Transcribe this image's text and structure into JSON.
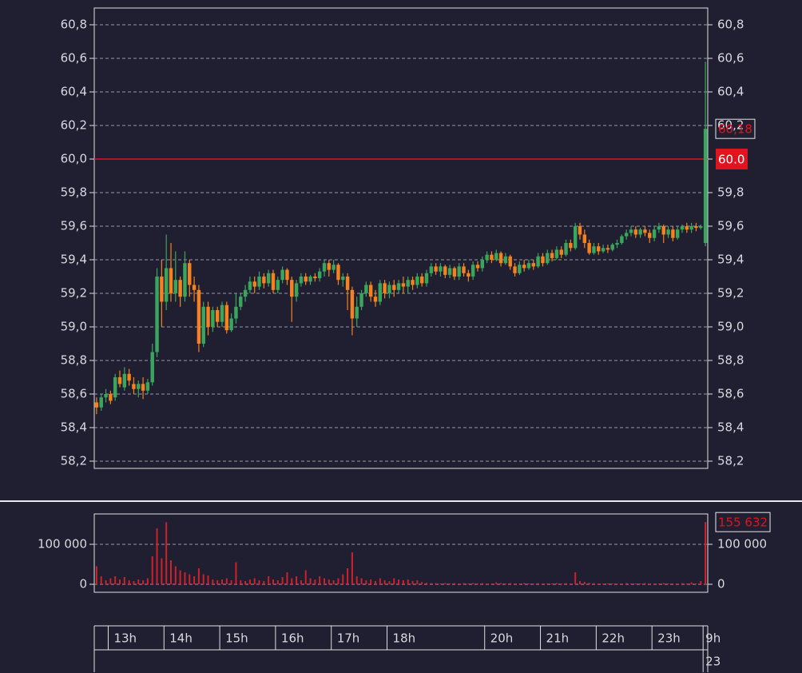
{
  "chart_data": {
    "type": "candlestick",
    "up_color": "#3aa55d",
    "down_color": "#f5821f",
    "volume_color": "#d0202a",
    "reference_color": "#e0141e",
    "grid": true,
    "categories": [
      null,
      null,
      null,
      "13h",
      null,
      null,
      null,
      null,
      null,
      null,
      null,
      null,
      null,
      null,
      null,
      "14h",
      null,
      null,
      null,
      null,
      null,
      null,
      null,
      null,
      null,
      null,
      null,
      "15h",
      null,
      null,
      null,
      null,
      null,
      null,
      null,
      null,
      null,
      null,
      null,
      "16h",
      null,
      null,
      null,
      null,
      null,
      null,
      null,
      null,
      null,
      null,
      null,
      "17h",
      null,
      null,
      null,
      null,
      null,
      null,
      null,
      null,
      null,
      null,
      null,
      "18h",
      null,
      null,
      null,
      null,
      null,
      null,
      null,
      null,
      null,
      null,
      null,
      null,
      null,
      null,
      null,
      null,
      null,
      null,
      null,
      null,
      "20h",
      null,
      null,
      null,
      null,
      null,
      null,
      null,
      null,
      null,
      null,
      null,
      "21h",
      null,
      null,
      null,
      null,
      null,
      null,
      null,
      null,
      null,
      null,
      null,
      "22h",
      null,
      null,
      null,
      null,
      null,
      null,
      null,
      null,
      null,
      null,
      null,
      "23h",
      null,
      null,
      null,
      null,
      null,
      null,
      null,
      null,
      null,
      null,
      "9h"
    ],
    "date_label": "23",
    "open": [
      58.55,
      58.52,
      58.58,
      58.6,
      58.58,
      58.7,
      58.64,
      58.72,
      58.66,
      58.63,
      58.66,
      58.62,
      58.67,
      58.85,
      59.3,
      59.15,
      59.35,
      59.2,
      59.28,
      59.18,
      59.38,
      59.25,
      59.22,
      58.9,
      59.12,
      59.0,
      59.1,
      59.03,
      59.13,
      58.98,
      59.05,
      59.12,
      59.18,
      59.22,
      59.27,
      59.24,
      59.3,
      59.26,
      59.32,
      59.22,
      59.28,
      59.34,
      59.28,
      59.18,
      59.26,
      59.3,
      59.27,
      59.3,
      59.29,
      59.33,
      59.38,
      59.34,
      59.37,
      59.28,
      59.3,
      59.22,
      59.05,
      59.12,
      59.2,
      59.25,
      59.18,
      59.15,
      59.26,
      59.2,
      59.25,
      59.22,
      59.26,
      59.24,
      59.28,
      59.25,
      59.3,
      59.26,
      59.32,
      59.36,
      59.33,
      59.36,
      59.31,
      59.35,
      59.3,
      59.36,
      59.32,
      59.3,
      59.37,
      59.35,
      59.4,
      59.43,
      59.4,
      59.44,
      59.38,
      59.42,
      59.36,
      59.32,
      59.37,
      59.35,
      59.38,
      59.36,
      59.42,
      59.38,
      59.44,
      59.41,
      59.46,
      59.43,
      59.5,
      59.47,
      59.6,
      59.55,
      59.5,
      59.44,
      59.48,
      59.45,
      59.47,
      59.46,
      59.49,
      59.5,
      59.54,
      59.56,
      59.58,
      59.55,
      59.58,
      59.56,
      59.53,
      59.58,
      59.6,
      59.55,
      59.58,
      59.53,
      59.58,
      59.6,
      59.58,
      59.6,
      59.59,
      59.5
    ],
    "high": [
      58.58,
      58.6,
      58.63,
      58.62,
      58.72,
      58.74,
      58.76,
      58.75,
      58.7,
      58.68,
      58.7,
      58.69,
      58.9,
      59.35,
      59.4,
      59.55,
      59.5,
      59.45,
      59.3,
      59.45,
      59.4,
      59.3,
      59.25,
      59.15,
      59.15,
      59.12,
      59.12,
      59.15,
      59.15,
      59.08,
      59.2,
      59.2,
      59.25,
      59.3,
      59.3,
      59.33,
      59.32,
      59.34,
      59.34,
      59.3,
      59.36,
      59.35,
      59.3,
      59.28,
      59.32,
      59.32,
      59.31,
      59.32,
      59.35,
      59.4,
      59.4,
      59.4,
      59.38,
      59.32,
      59.32,
      59.24,
      59.18,
      59.22,
      59.27,
      59.27,
      59.22,
      59.28,
      59.28,
      59.27,
      59.28,
      59.28,
      59.3,
      59.3,
      59.3,
      59.32,
      59.32,
      59.34,
      59.38,
      59.38,
      59.38,
      59.37,
      59.37,
      59.36,
      59.38,
      59.38,
      59.34,
      59.39,
      59.39,
      59.42,
      59.45,
      59.45,
      59.46,
      59.45,
      59.44,
      59.43,
      59.38,
      59.39,
      59.4,
      59.4,
      59.4,
      59.44,
      59.44,
      59.46,
      59.46,
      59.48,
      59.48,
      59.52,
      59.52,
      59.62,
      59.62,
      59.58,
      59.52,
      59.5,
      59.5,
      59.49,
      59.49,
      59.5,
      59.52,
      59.55,
      59.58,
      59.6,
      59.6,
      59.59,
      59.6,
      59.58,
      59.6,
      59.62,
      59.61,
      59.6,
      59.6,
      59.6,
      59.61,
      59.62,
      59.62,
      59.62,
      59.61,
      60.58
    ],
    "low": [
      58.48,
      58.5,
      58.55,
      58.54,
      58.56,
      58.64,
      58.62,
      58.65,
      58.6,
      58.58,
      58.57,
      58.6,
      58.65,
      58.82,
      59.0,
      59.1,
      59.15,
      59.15,
      59.12,
      59.15,
      59.18,
      59.15,
      58.85,
      58.88,
      58.95,
      58.97,
      59.0,
      59.0,
      58.96,
      58.97,
      59.02,
      59.1,
      59.15,
      59.2,
      59.2,
      59.22,
      59.23,
      59.24,
      59.2,
      59.2,
      59.26,
      59.25,
      59.03,
      59.15,
      59.24,
      59.25,
      59.25,
      59.27,
      59.27,
      59.3,
      59.3,
      59.32,
      59.25,
      59.24,
      59.1,
      58.95,
      59.0,
      59.1,
      59.18,
      59.15,
      59.12,
      59.13,
      59.17,
      59.17,
      59.18,
      59.2,
      59.2,
      59.2,
      59.22,
      59.23,
      59.24,
      59.24,
      59.3,
      59.31,
      59.3,
      59.29,
      59.29,
      59.28,
      59.28,
      59.3,
      59.27,
      59.28,
      59.33,
      59.33,
      59.38,
      59.38,
      59.39,
      59.36,
      59.37,
      59.34,
      59.3,
      59.31,
      59.33,
      59.34,
      59.34,
      59.35,
      59.36,
      59.37,
      59.39,
      59.4,
      59.41,
      59.42,
      59.45,
      59.46,
      59.52,
      59.47,
      59.43,
      59.43,
      59.43,
      59.44,
      59.44,
      59.45,
      59.47,
      59.49,
      59.52,
      59.54,
      59.53,
      59.53,
      59.54,
      59.5,
      59.51,
      59.56,
      59.5,
      59.53,
      59.51,
      59.52,
      59.56,
      59.56,
      59.56,
      59.57,
      59.58,
      59.48
    ],
    "close": [
      58.52,
      58.58,
      58.6,
      58.56,
      58.7,
      58.66,
      58.72,
      58.68,
      58.63,
      58.66,
      58.62,
      58.67,
      58.85,
      59.3,
      59.15,
      59.35,
      59.2,
      59.28,
      59.18,
      59.38,
      59.25,
      59.22,
      58.9,
      59.12,
      59.0,
      59.1,
      59.03,
      59.13,
      58.98,
      59.05,
      59.12,
      59.18,
      59.22,
      59.27,
      59.24,
      59.3,
      59.26,
      59.32,
      59.22,
      59.28,
      59.34,
      59.28,
      59.18,
      59.26,
      59.3,
      59.27,
      59.3,
      59.29,
      59.33,
      59.38,
      59.34,
      59.37,
      59.28,
      59.3,
      59.22,
      59.05,
      59.12,
      59.2,
      59.25,
      59.18,
      59.15,
      59.26,
      59.2,
      59.25,
      59.22,
      59.26,
      59.24,
      59.28,
      59.25,
      59.3,
      59.26,
      59.32,
      59.36,
      59.33,
      59.36,
      59.31,
      59.35,
      59.3,
      59.36,
      59.32,
      59.3,
      59.37,
      59.35,
      59.4,
      59.43,
      59.4,
      59.44,
      59.38,
      59.42,
      59.36,
      59.32,
      59.37,
      59.35,
      59.38,
      59.36,
      59.42,
      59.38,
      59.44,
      59.41,
      59.46,
      59.43,
      59.5,
      59.47,
      59.6,
      59.55,
      59.5,
      59.44,
      59.48,
      59.45,
      59.47,
      59.46,
      59.49,
      59.5,
      59.54,
      59.56,
      59.58,
      59.55,
      59.58,
      59.56,
      59.53,
      59.58,
      59.6,
      59.55,
      59.58,
      59.53,
      59.58,
      59.6,
      59.58,
      59.6,
      59.59,
      59.6,
      60.18
    ],
    "last_close_label": "60,18",
    "volume": [
      45000,
      20000,
      10000,
      15000,
      20000,
      12000,
      18000,
      10000,
      8000,
      12000,
      10000,
      15000,
      70000,
      140000,
      65000,
      155000,
      60000,
      45000,
      35000,
      30000,
      25000,
      20000,
      40000,
      25000,
      22000,
      12000,
      10000,
      12000,
      15000,
      10000,
      55000,
      10000,
      8000,
      12000,
      15000,
      10000,
      8000,
      20000,
      12000,
      10000,
      18000,
      30000,
      15000,
      20000,
      10000,
      35000,
      15000,
      12000,
      20000,
      15000,
      12000,
      10000,
      15000,
      25000,
      40000,
      80000,
      20000,
      15000,
      10000,
      12000,
      8000,
      15000,
      10000,
      8000,
      15000,
      12000,
      10000,
      12000,
      8000,
      10000,
      6000,
      4000,
      3000,
      3000,
      2000,
      3000,
      2000,
      3000,
      2000,
      3000,
      2000,
      3000,
      2000,
      3000,
      2000,
      2000,
      5000,
      3000,
      2000,
      3000,
      2000,
      2000,
      3000,
      2000,
      2000,
      3000,
      2000,
      2000,
      2000,
      3000,
      2000,
      3000,
      2000,
      30000,
      8000,
      6000,
      4000,
      3000,
      2000,
      2000,
      2000,
      2000,
      2000,
      2000,
      3000,
      2000,
      2000,
      2000,
      3000,
      2000,
      2000,
      2000,
      3000,
      2000,
      2000,
      2000,
      3000,
      2000,
      5000,
      2000,
      8000,
      155632
    ],
    "last_volume_label": "155 632",
    "reference_line": {
      "value": 60.0,
      "label": "60.0"
    },
    "ylim": [
      58.157,
      60.9
    ],
    "yticks": [
      {
        "value": 58.2,
        "label": "58,2"
      },
      {
        "value": 58.4,
        "label": "58,4"
      },
      {
        "value": 58.6,
        "label": "58,6"
      },
      {
        "value": 58.8,
        "label": "58,8"
      },
      {
        "value": 59.0,
        "label": "59,0"
      },
      {
        "value": 59.2,
        "label": "59,2"
      },
      {
        "value": 59.4,
        "label": "59,4"
      },
      {
        "value": 59.6,
        "label": "59,6"
      },
      {
        "value": 59.8,
        "label": "59,8"
      },
      {
        "value": 60.0,
        "label": "60,0"
      },
      {
        "value": 60.2,
        "label": "60,2"
      },
      {
        "value": 60.4,
        "label": "60,4"
      },
      {
        "value": 60.6,
        "label": "60,6"
      },
      {
        "value": 60.8,
        "label": "60,8"
      }
    ],
    "y2lim": [
      -20000,
      176000
    ],
    "y2ticks": [
      0,
      {
        "value": 100000,
        "label": "100 000"
      }
    ]
  }
}
